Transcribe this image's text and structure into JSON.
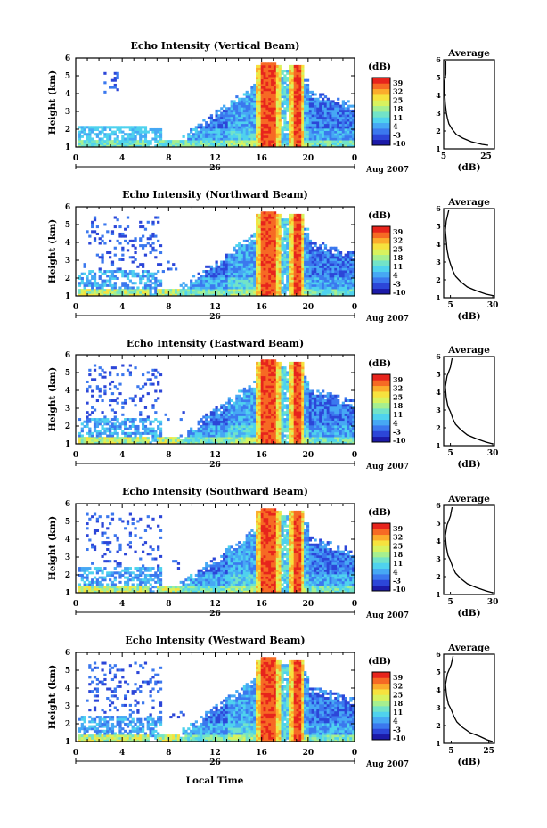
{
  "colorbar": {
    "unit": "(dB)",
    "ticks": [
      "39",
      "32",
      "25",
      "18",
      "11",
      "4",
      "-3",
      "-10"
    ],
    "colors": [
      "#1c1aa8",
      "#2c46d8",
      "#3b78ee",
      "#46a8f4",
      "#4fd2ee",
      "#72e3c8",
      "#a6ef8f",
      "#d8f25e",
      "#f6e23e",
      "#fbac2c",
      "#f66a24",
      "#e7241c"
    ]
  },
  "shared": {
    "x_ticks": [
      "0",
      "4",
      "8",
      "12",
      "16",
      "20",
      "0"
    ],
    "date_label": "26",
    "month_label": "Aug 2007",
    "x_axis_label": "Local Time",
    "avg_title": "Average",
    "avg_xlabel": "(dB)",
    "y_ticks": [
      "6",
      "5",
      "4",
      "3",
      "2",
      "1"
    ]
  },
  "chart_data": [
    {
      "type": "heatmap",
      "title": "Echo Intensity (Vertical Beam)",
      "ylabel": "Height (km)",
      "xlim": [
        0,
        24
      ],
      "ylim": [
        1,
        6
      ],
      "avg_profile": {
        "type": "line",
        "xticks": [
          "5",
          "25"
        ],
        "xlim": [
          5,
          29
        ],
        "ylim": [
          1,
          6
        ],
        "x": [
          6,
          6,
          5.2,
          5.5,
          5.8,
          6.3,
          6.8,
          7.5,
          9,
          11,
          14,
          18,
          23,
          26
        ],
        "y": [
          5.9,
          5.2,
          4.6,
          4.0,
          3.5,
          3.0,
          2.7,
          2.4,
          2.1,
          1.8,
          1.6,
          1.4,
          1.25,
          1.2
        ]
      }
    },
    {
      "type": "heatmap",
      "title": "Echo Intensity (Northward Beam)",
      "ylabel": "Height (km)",
      "xlim": [
        0,
        24
      ],
      "ylim": [
        1,
        6
      ],
      "avg_profile": {
        "type": "line",
        "xticks": [
          "5",
          "30"
        ],
        "xlim": [
          1,
          31
        ],
        "ylim": [
          1,
          6
        ],
        "x": [
          4,
          2.5,
          2,
          2.5,
          3,
          4,
          5,
          6.5,
          8,
          11,
          15,
          20,
          26,
          31
        ],
        "y": [
          5.9,
          5.3,
          4.8,
          4.2,
          3.7,
          3.2,
          2.9,
          2.5,
          2.2,
          1.9,
          1.6,
          1.4,
          1.2,
          1.1
        ]
      }
    },
    {
      "type": "heatmap",
      "title": "Echo Intensity (Eastward Beam)",
      "ylabel": "Height (km)",
      "xlim": [
        0,
        24
      ],
      "ylim": [
        1,
        6
      ],
      "avg_profile": {
        "type": "line",
        "xticks": [
          "5",
          "30"
        ],
        "xlim": [
          1,
          31
        ],
        "ylim": [
          1,
          6
        ],
        "x": [
          6,
          5,
          3,
          2,
          2.5,
          3.5,
          5,
          6.5,
          8,
          11,
          15,
          20,
          26,
          30
        ],
        "y": [
          5.9,
          5.4,
          4.9,
          4.3,
          3.7,
          3.2,
          2.9,
          2.5,
          2.2,
          1.9,
          1.6,
          1.4,
          1.2,
          1.1
        ]
      }
    },
    {
      "type": "heatmap",
      "title": "Echo Intensity (Southward Beam)",
      "ylabel": "Height (km)",
      "xlim": [
        0,
        24
      ],
      "ylim": [
        1,
        6
      ],
      "avg_profile": {
        "type": "line",
        "xticks": [
          "5",
          "30"
        ],
        "xlim": [
          1,
          31
        ],
        "ylim": [
          1,
          6
        ],
        "x": [
          6,
          5,
          3,
          2,
          2.5,
          3.5,
          5,
          6.5,
          8,
          11,
          15,
          20,
          26,
          30
        ],
        "y": [
          5.9,
          5.4,
          4.9,
          4.3,
          3.7,
          3.2,
          2.9,
          2.5,
          2.2,
          1.9,
          1.6,
          1.4,
          1.2,
          1.1
        ]
      }
    },
    {
      "type": "heatmap",
      "title": "Echo Intensity (Westward Beam)",
      "ylabel": "Height (km)",
      "xlim": [
        0,
        24
      ],
      "ylim": [
        1,
        6
      ],
      "avg_profile": {
        "type": "line",
        "xticks": [
          "5",
          "25"
        ],
        "xlim": [
          1,
          28
        ],
        "ylim": [
          1,
          6
        ],
        "x": [
          6,
          5,
          3,
          2,
          2.5,
          3.5,
          5,
          6.5,
          8,
          11,
          15,
          20,
          24,
          27
        ],
        "y": [
          5.9,
          5.4,
          4.9,
          4.3,
          3.7,
          3.2,
          2.9,
          2.5,
          2.2,
          1.9,
          1.6,
          1.4,
          1.2,
          1.1
        ]
      }
    }
  ]
}
